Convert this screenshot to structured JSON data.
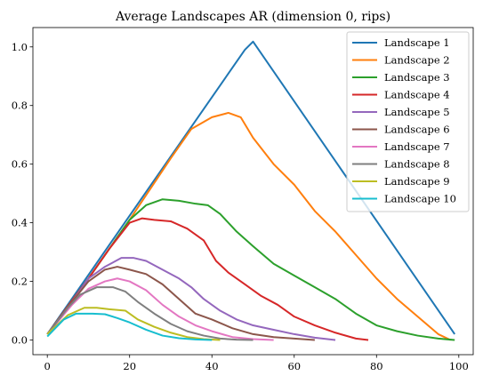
{
  "chart_data": {
    "type": "line",
    "title": "Average Landscapes AR (dimension 0, rips)",
    "xlabel": "",
    "ylabel": "",
    "xlim": [
      -3.5,
      103.5
    ],
    "ylim": [
      -0.05,
      1.066
    ],
    "x_ticks": [
      0,
      20,
      40,
      60,
      80,
      100
    ],
    "y_ticks": [
      0.0,
      0.2,
      0.4,
      0.6,
      0.8,
      1.0
    ],
    "x_tick_labels": [
      "0",
      "20",
      "40",
      "60",
      "80",
      "100"
    ],
    "y_tick_labels": [
      "0.0",
      "0.2",
      "0.4",
      "0.6",
      "0.8",
      "1.0"
    ],
    "grid": false,
    "legend_position": "top-right",
    "series": [
      {
        "name": "Landscape 1",
        "color": "#1f77b4",
        "x": [
          0,
          48,
          50,
          99
        ],
        "y": [
          0.02,
          0.99,
          1.018,
          0.02
        ]
      },
      {
        "name": "Landscape 2",
        "color": "#ff7f0e",
        "x": [
          0,
          10,
          20,
          30,
          35,
          40,
          44,
          47,
          50,
          55,
          60,
          65,
          70,
          75,
          80,
          85,
          90,
          95,
          98
        ],
        "y": [
          0.02,
          0.21,
          0.41,
          0.62,
          0.72,
          0.76,
          0.775,
          0.76,
          0.69,
          0.6,
          0.53,
          0.44,
          0.37,
          0.29,
          0.21,
          0.14,
          0.08,
          0.02,
          0.0
        ]
      },
      {
        "name": "Landscape 3",
        "color": "#2ca02c",
        "x": [
          0,
          10,
          15,
          20,
          24,
          28,
          32,
          36,
          39,
          42,
          46,
          50,
          55,
          60,
          65,
          70,
          75,
          80,
          85,
          90,
          95,
          99
        ],
        "y": [
          0.02,
          0.21,
          0.31,
          0.41,
          0.46,
          0.48,
          0.475,
          0.465,
          0.46,
          0.43,
          0.37,
          0.32,
          0.26,
          0.22,
          0.18,
          0.14,
          0.09,
          0.05,
          0.03,
          0.015,
          0.005,
          0.0
        ]
      },
      {
        "name": "Landscape 4",
        "color": "#d62728",
        "x": [
          0,
          10,
          15,
          20,
          23,
          26,
          30,
          34,
          38,
          41,
          44,
          48,
          52,
          56,
          60,
          65,
          70,
          75,
          78
        ],
        "y": [
          0.02,
          0.21,
          0.31,
          0.4,
          0.415,
          0.41,
          0.405,
          0.38,
          0.34,
          0.27,
          0.23,
          0.19,
          0.15,
          0.12,
          0.08,
          0.05,
          0.025,
          0.005,
          0.0
        ]
      },
      {
        "name": "Landscape 5",
        "color": "#9467bd",
        "x": [
          0,
          6,
          10,
          14,
          18,
          21,
          24,
          28,
          32,
          35,
          38,
          42,
          46,
          50,
          55,
          60,
          65,
          70
        ],
        "y": [
          0.02,
          0.13,
          0.21,
          0.25,
          0.28,
          0.28,
          0.27,
          0.24,
          0.21,
          0.18,
          0.14,
          0.1,
          0.07,
          0.05,
          0.035,
          0.02,
          0.008,
          0.0
        ]
      },
      {
        "name": "Landscape 6",
        "color": "#8c564b",
        "x": [
          0,
          6,
          10,
          14,
          17,
          20,
          24,
          28,
          32,
          36,
          40,
          45,
          50,
          55,
          60,
          65
        ],
        "y": [
          0.02,
          0.13,
          0.2,
          0.24,
          0.25,
          0.24,
          0.225,
          0.19,
          0.14,
          0.09,
          0.07,
          0.04,
          0.02,
          0.01,
          0.005,
          0.0
        ]
      },
      {
        "name": "Landscape 7",
        "color": "#e377c2",
        "x": [
          0,
          6,
          10,
          14,
          17,
          20,
          24,
          28,
          32,
          36,
          40,
          45,
          50,
          55
        ],
        "y": [
          0.02,
          0.12,
          0.175,
          0.2,
          0.21,
          0.2,
          0.17,
          0.12,
          0.08,
          0.05,
          0.03,
          0.01,
          0.003,
          0.0
        ]
      },
      {
        "name": "Landscape 8",
        "color": "#7f7f7f",
        "x": [
          0,
          5,
          8,
          12,
          16,
          19,
          22,
          26,
          30,
          34,
          38,
          42,
          46,
          50
        ],
        "y": [
          0.02,
          0.11,
          0.155,
          0.18,
          0.18,
          0.165,
          0.13,
          0.09,
          0.055,
          0.03,
          0.015,
          0.005,
          0.001,
          0.0
        ]
      },
      {
        "name": "Landscape 9",
        "color": "#bcbd22",
        "x": [
          0,
          5,
          9,
          12,
          15,
          19,
          22,
          26,
          30,
          34,
          38,
          42
        ],
        "y": [
          0.02,
          0.085,
          0.11,
          0.11,
          0.105,
          0.1,
          0.07,
          0.045,
          0.025,
          0.01,
          0.003,
          0.0
        ]
      },
      {
        "name": "Landscape 10",
        "color": "#17becf",
        "x": [
          0,
          4,
          7,
          11,
          14,
          17,
          20,
          24,
          28,
          32,
          36,
          40
        ],
        "y": [
          0.012,
          0.07,
          0.09,
          0.09,
          0.088,
          0.075,
          0.06,
          0.035,
          0.015,
          0.006,
          0.002,
          0.0
        ]
      }
    ]
  }
}
